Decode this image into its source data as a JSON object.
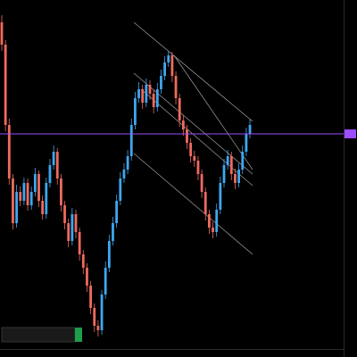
{
  "chart_data": {
    "type": "candlestick",
    "ylim": [
      0,
      385
    ],
    "up_color": "#3fa7f0",
    "down_color": "#ef6a5f",
    "hline": 235,
    "hline_color": "#9b4dff",
    "candles": [
      [
        360,
        368,
        328,
        335
      ],
      [
        335,
        340,
        238,
        245
      ],
      [
        245,
        252,
        178,
        185
      ],
      [
        185,
        190,
        128,
        135
      ],
      [
        135,
        178,
        130,
        170
      ],
      [
        170,
        176,
        154,
        160
      ],
      [
        160,
        186,
        155,
        180
      ],
      [
        180,
        185,
        149,
        155
      ],
      [
        155,
        176,
        150,
        170
      ],
      [
        170,
        197,
        165,
        190
      ],
      [
        190,
        194,
        153,
        160
      ],
      [
        160,
        166,
        139,
        145
      ],
      [
        145,
        186,
        140,
        180
      ],
      [
        180,
        207,
        175,
        200
      ],
      [
        200,
        222,
        195,
        215
      ],
      [
        215,
        219,
        178,
        185
      ],
      [
        185,
        190,
        148,
        155
      ],
      [
        155,
        160,
        128,
        135
      ],
      [
        135,
        140,
        108,
        115
      ],
      [
        115,
        152,
        110,
        145
      ],
      [
        145,
        150,
        118,
        125
      ],
      [
        125,
        130,
        93,
        100
      ],
      [
        100,
        105,
        78,
        85
      ],
      [
        85,
        90,
        58,
        65
      ],
      [
        65,
        70,
        33,
        40
      ],
      [
        40,
        45,
        13,
        20
      ],
      [
        20,
        26,
        8,
        15
      ],
      [
        15,
        60,
        10,
        55
      ],
      [
        55,
        92,
        50,
        85
      ],
      [
        85,
        122,
        80,
        115
      ],
      [
        115,
        142,
        110,
        135
      ],
      [
        135,
        167,
        130,
        160
      ],
      [
        160,
        192,
        155,
        185
      ],
      [
        185,
        202,
        180,
        195
      ],
      [
        195,
        217,
        190,
        210
      ],
      [
        210,
        252,
        205,
        245
      ],
      [
        245,
        282,
        240,
        275
      ],
      [
        275,
        293,
        270,
        285
      ],
      [
        285,
        290,
        263,
        270
      ],
      [
        270,
        297,
        265,
        290
      ],
      [
        290,
        295,
        273,
        280
      ],
      [
        280,
        285,
        258,
        265
      ],
      [
        265,
        292,
        260,
        285
      ],
      [
        285,
        307,
        280,
        300
      ],
      [
        300,
        322,
        295,
        315
      ],
      [
        315,
        328,
        310,
        323
      ],
      [
        323,
        327,
        293,
        300
      ],
      [
        300,
        305,
        268,
        275
      ],
      [
        275,
        280,
        243,
        250
      ],
      [
        250,
        256,
        233,
        240
      ],
      [
        240,
        245,
        218,
        225
      ],
      [
        225,
        230,
        203,
        210
      ],
      [
        210,
        216,
        198,
        205
      ],
      [
        205,
        210,
        183,
        190
      ],
      [
        190,
        195,
        163,
        170
      ],
      [
        170,
        175,
        138,
        145
      ],
      [
        145,
        150,
        123,
        130
      ],
      [
        130,
        136,
        118,
        125
      ],
      [
        125,
        157,
        120,
        150
      ],
      [
        150,
        187,
        145,
        180
      ],
      [
        180,
        207,
        175,
        200
      ],
      [
        200,
        217,
        195,
        210
      ],
      [
        210,
        215,
        183,
        190
      ],
      [
        190,
        196,
        173,
        180
      ],
      [
        180,
        202,
        175,
        195
      ],
      [
        195,
        222,
        190,
        215
      ],
      [
        215,
        242,
        210,
        235
      ],
      [
        235,
        252,
        230,
        245
      ]
    ]
  }
}
